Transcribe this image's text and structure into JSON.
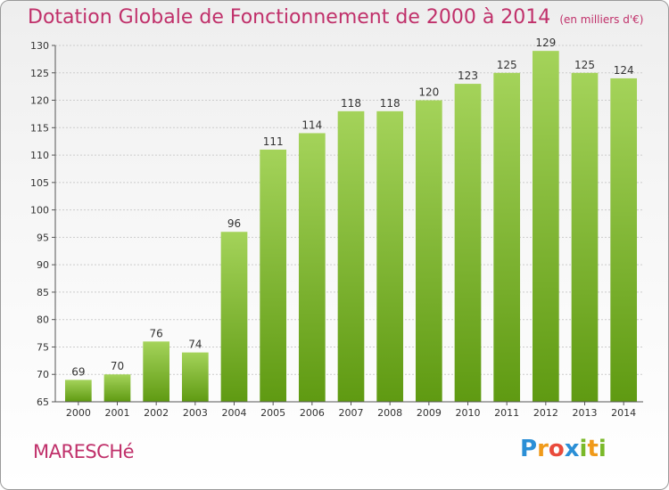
{
  "header": {
    "title": "Dotation Globale de Fonctionnement de 2000 à 2014",
    "subtitle": "(en milliers d'€)"
  },
  "footer": {
    "commune": "MARESCHé",
    "logo_letters": [
      "P",
      "r",
      "o",
      "x",
      "i",
      "t",
      "i"
    ],
    "logo_colors": [
      "#2b8fd6",
      "#f09a1a",
      "#e94b3c",
      "#2b8fd6",
      "#7ab929",
      "#f09a1a",
      "#7ab929"
    ]
  },
  "colors": {
    "title": "#c0306a",
    "bar_light": "#a4d35a",
    "bar_dark": "#5f9a12",
    "grid": "#cccccc",
    "axis": "#555555"
  },
  "chart_data": {
    "type": "bar",
    "title": "Dotation Globale de Fonctionnement de 2000 à 2014",
    "subtitle": "(en milliers d'€)",
    "categories": [
      "2000",
      "2001",
      "2002",
      "2003",
      "2004",
      "2005",
      "2006",
      "2007",
      "2008",
      "2009",
      "2010",
      "2011",
      "2012",
      "2013",
      "2014"
    ],
    "values": [
      69,
      70,
      76,
      74,
      96,
      111,
      114,
      118,
      118,
      120,
      123,
      125,
      129,
      125,
      124
    ],
    "ylim": [
      65,
      130
    ],
    "yticks": [
      65,
      70,
      75,
      80,
      85,
      90,
      95,
      100,
      105,
      110,
      115,
      120,
      125,
      130
    ],
    "xlabel": "",
    "ylabel": "",
    "grid": true,
    "data_labels": true
  }
}
